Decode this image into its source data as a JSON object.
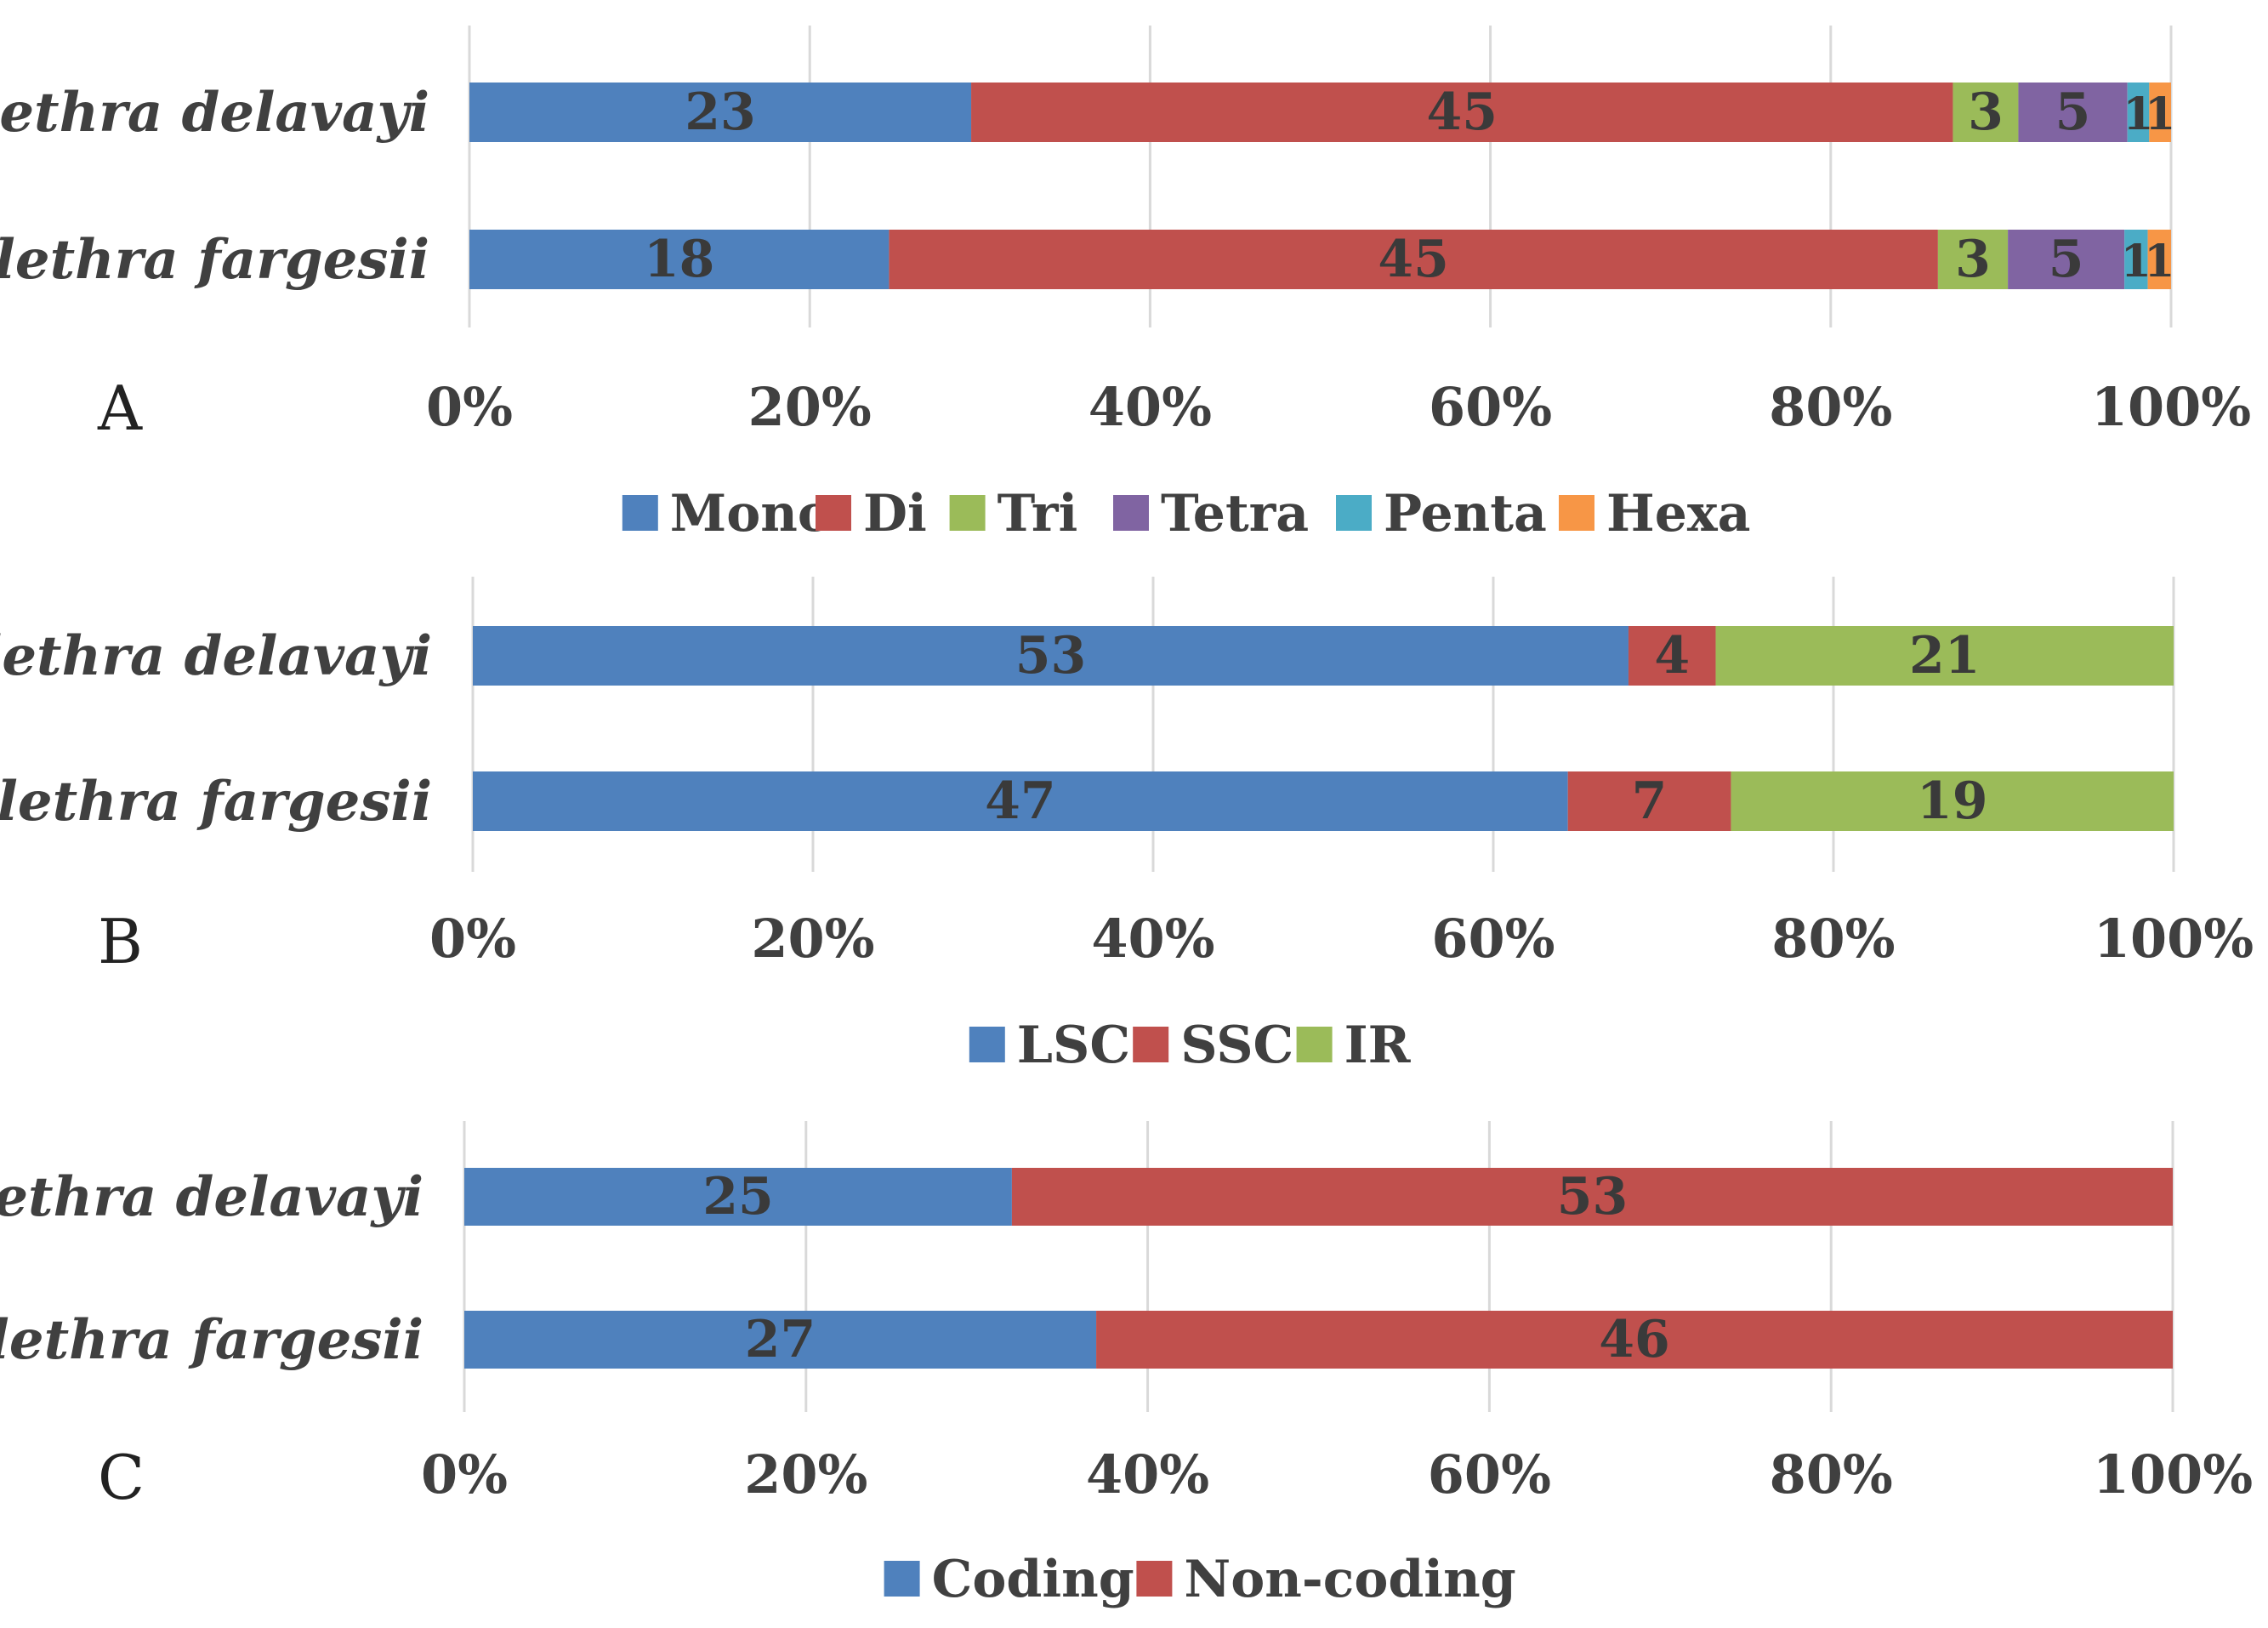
{
  "colors": {
    "mono": "#4f81bd",
    "di": "#c0504d",
    "tri": "#9bbb59",
    "tetra": "#8064a2",
    "penta": "#4bacc6",
    "hexa": "#f79646",
    "grid": "#d9d9d9",
    "text": "#404040"
  },
  "chart_data": [
    {
      "type": "bar",
      "orientation": "horizontal",
      "stacked": "percent",
      "panel_label": "A",
      "categories": [
        "Clethra delavayi",
        "Clethra fargesii"
      ],
      "series": [
        {
          "name": "Mono",
          "color": "#4f81bd",
          "values": [
            23,
            18
          ]
        },
        {
          "name": "Di",
          "color": "#c0504d",
          "values": [
            45,
            45
          ]
        },
        {
          "name": "Tri",
          "color": "#9bbb59",
          "values": [
            3,
            3
          ]
        },
        {
          "name": "Tetra",
          "color": "#8064a2",
          "values": [
            5,
            5
          ]
        },
        {
          "name": "Penta",
          "color": "#4bacc6",
          "values": [
            1,
            1
          ]
        },
        {
          "name": "Hexa",
          "color": "#f79646",
          "values": [
            1,
            1
          ]
        }
      ],
      "xticks": [
        "0%",
        "20%",
        "40%",
        "60%",
        "80%",
        "100%"
      ],
      "xlim": [
        0,
        100
      ],
      "grid": true,
      "legend": "bottom"
    },
    {
      "type": "bar",
      "orientation": "horizontal",
      "stacked": "percent",
      "panel_label": "B",
      "categories": [
        "Clethra delavayi",
        "Clethra fargesii"
      ],
      "series": [
        {
          "name": "LSC",
          "color": "#4f81bd",
          "values": [
            53,
            47
          ]
        },
        {
          "name": "SSC",
          "color": "#c0504d",
          "values": [
            4,
            7
          ]
        },
        {
          "name": "IR",
          "color": "#9bbb59",
          "values": [
            21,
            19
          ]
        }
      ],
      "xticks": [
        "0%",
        "20%",
        "40%",
        "60%",
        "80%",
        "100%"
      ],
      "xlim": [
        0,
        100
      ],
      "grid": true,
      "legend": "bottom"
    },
    {
      "type": "bar",
      "orientation": "horizontal",
      "stacked": "percent",
      "panel_label": "C",
      "categories": [
        "Clethra delavayi",
        "Clethra fargesii"
      ],
      "series": [
        {
          "name": "Coding",
          "color": "#4f81bd",
          "values": [
            25,
            27
          ]
        },
        {
          "name": "Non-coding",
          "color": "#c0504d",
          "values": [
            53,
            46
          ]
        }
      ],
      "xticks": [
        "0%",
        "20%",
        "40%",
        "60%",
        "80%",
        "100%"
      ],
      "xlim": [
        0,
        100
      ],
      "grid": true,
      "legend": "bottom"
    }
  ]
}
